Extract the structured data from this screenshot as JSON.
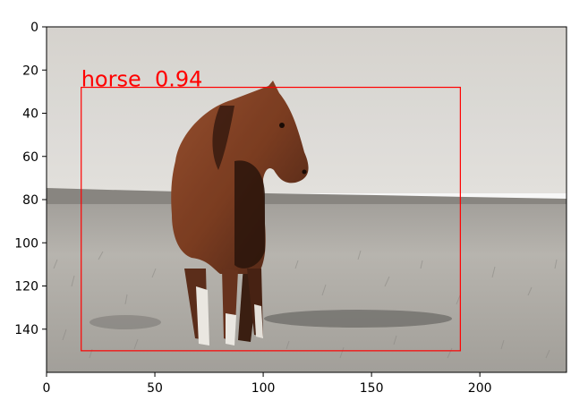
{
  "chart_data": {
    "type": "image",
    "image_subject": "horse-photo",
    "xlim": [
      0,
      240
    ],
    "ylim": [
      160,
      0
    ],
    "x_ticks": [
      0,
      50,
      100,
      150,
      200
    ],
    "y_ticks": [
      0,
      20,
      40,
      60,
      80,
      100,
      120,
      140
    ],
    "x_tick_labels": [
      "0",
      "50",
      "100",
      "150",
      "200"
    ],
    "y_tick_labels": [
      "0",
      "20",
      "40",
      "60",
      "80",
      "100",
      "120",
      "140"
    ],
    "detections": [
      {
        "label": "horse  0.94",
        "class": "horse",
        "score": 0.94,
        "x_min": 16,
        "y_min": 28,
        "x_max": 191,
        "y_max": 150,
        "color": "#ff0000"
      }
    ]
  }
}
